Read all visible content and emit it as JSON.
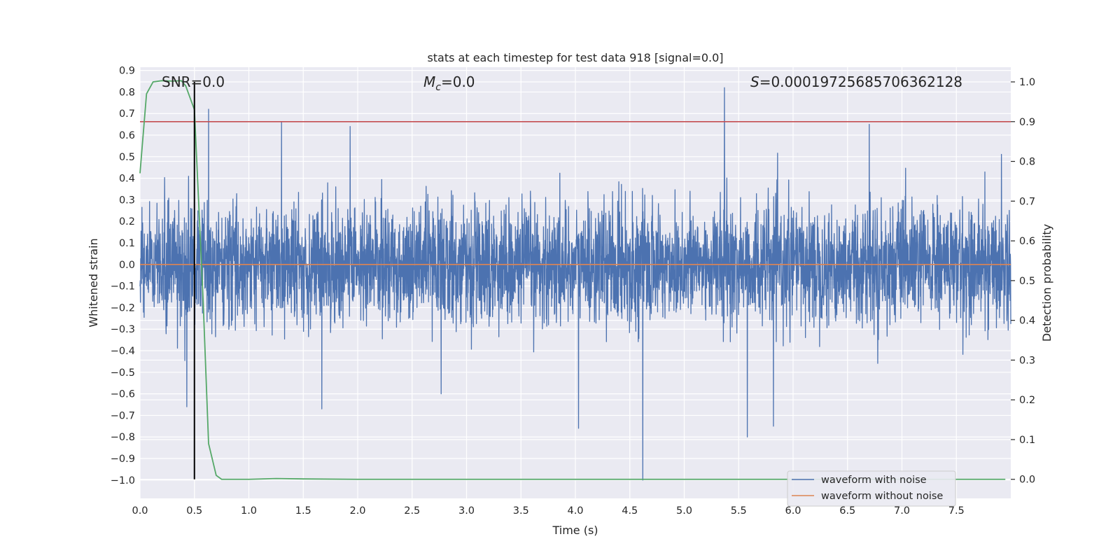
{
  "chart_data": {
    "type": "line",
    "title": "stats at each timestep for test data 918 [signal=0.0]",
    "xlabel": "Time (s)",
    "ylabel_left": "Whitened strain",
    "ylabel_right": "Detection probability",
    "xlim": [
      0.0,
      8.0
    ],
    "ylim_left": [
      -1.085,
      0.915
    ],
    "ylim_right": [
      -0.048,
      1.037
    ],
    "x_ticks": [
      "0.0",
      "0.5",
      "1.0",
      "1.5",
      "2.0",
      "2.5",
      "3.0",
      "3.5",
      "4.0",
      "4.5",
      "5.0",
      "5.5",
      "6.0",
      "6.5",
      "7.0",
      "7.5"
    ],
    "y_ticks_left": [
      "0.9",
      "0.8",
      "0.7",
      "0.6",
      "0.5",
      "0.4",
      "0.3",
      "0.2",
      "0.1",
      "0.0",
      "−0.1",
      "−0.2",
      "−0.3",
      "−0.4",
      "−0.5",
      "−0.6",
      "−0.7",
      "−0.8",
      "−0.9",
      "−1.0"
    ],
    "y_ticks_right": [
      "1.0",
      "0.9",
      "0.8",
      "0.7",
      "0.6",
      "0.5",
      "0.4",
      "0.3",
      "0.2",
      "0.1",
      "0.0"
    ],
    "grid": true,
    "legend_position": "lower-right",
    "annotations": {
      "snr": "SNR=0.0",
      "mc_symbol": "M",
      "mc_sub": "c",
      "mc_value": "=0.0",
      "s_symbol": "S",
      "s_value": "=0.00019725685706362128"
    },
    "series": [
      {
        "name": "waveform with noise",
        "axis": "left",
        "color": "#4c72b0",
        "noise": {
          "n": 4000,
          "sigma": 0.135,
          "x_start": 0.0,
          "x_end": 8.0
        },
        "peaks": [
          [
            0.43,
            -0.66
          ],
          [
            0.63,
            0.72
          ],
          [
            1.3,
            0.66
          ],
          [
            1.67,
            -0.67
          ],
          [
            1.93,
            0.64
          ],
          [
            4.03,
            -0.76
          ],
          [
            4.62,
            -1.0
          ],
          [
            5.37,
            0.82
          ],
          [
            5.58,
            -0.8
          ],
          [
            5.82,
            -0.75
          ],
          [
            6.7,
            0.65
          ]
        ]
      },
      {
        "name": "waveform without noise",
        "axis": "left",
        "color": "#dd8452",
        "x": [
          0.0,
          8.0
        ],
        "y": [
          0.0,
          0.0
        ]
      },
      {
        "axis": "right",
        "color": "#55a868",
        "x": [
          0.0,
          0.06,
          0.12,
          0.2,
          0.3,
          0.38,
          0.42,
          0.5,
          0.58,
          0.63,
          0.7,
          0.75,
          0.85,
          1.0,
          1.25,
          1.5,
          2.0,
          3.0,
          4.0,
          5.0,
          6.0,
          7.0,
          7.95
        ],
        "y": [
          0.77,
          0.97,
          1.0,
          1.003,
          1.002,
          1.003,
          0.99,
          0.93,
          0.45,
          0.09,
          0.01,
          0.0,
          0.0,
          0.0,
          0.002,
          0.001,
          0.0,
          0.0,
          0.0,
          0.0,
          0.0,
          0.0,
          0.0
        ]
      }
    ],
    "threshold_line": {
      "axis": "right",
      "y": 0.9,
      "color": "#c44e52"
    },
    "marker_line": {
      "x": 0.5,
      "y_range_right": [
        0.0,
        1.0
      ],
      "color": "#000000"
    }
  }
}
